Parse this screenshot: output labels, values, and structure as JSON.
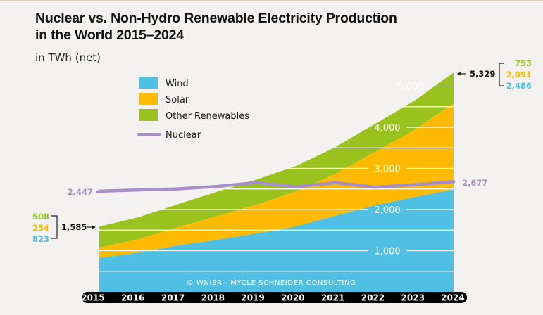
{
  "title_line1": "Nuclear vs. Non-Hydro Renewable Electricity Production",
  "title_line2": "in the World 2015–2024",
  "subtitle": "in TWh (net)",
  "credit": "© WNISR - MYCLE SCHNEIDER CONSULTING",
  "colors": {
    "wind": "#4fc0e4",
    "solar": "#fdba00",
    "other": "#99c21f",
    "nuclear": "#a68fc9",
    "background": "#f4f2f0",
    "year_bar": "#000000",
    "five_thousand_label": "#d8bc93"
  },
  "chart_data": {
    "type": "area",
    "stacked": true,
    "title": "Nuclear vs. Non-Hydro Renewable Electricity Production in the World 2015–2024",
    "ylabel": "in TWh (net)",
    "xlabel": "",
    "x": [
      "2015",
      "2016",
      "2017",
      "2018",
      "2019",
      "2020",
      "2021",
      "2022",
      "2023",
      "2024"
    ],
    "ylim": [
      0,
      5400
    ],
    "gridlines": [
      500,
      1000,
      1500,
      2000,
      2500,
      3000,
      3500,
      4000,
      4500,
      5000
    ],
    "gridline_labels": [
      {
        "value": 1000,
        "label": "1,000"
      },
      {
        "value": 2000,
        "label": "2,000"
      },
      {
        "value": 3000,
        "label": "3,000"
      },
      {
        "value": 4000,
        "label": "4,000"
      },
      {
        "value": 5000,
        "label": "5,000"
      }
    ],
    "series": [
      {
        "name": "Wind",
        "key": "wind",
        "values": [
          823,
          955,
          1130,
          1265,
          1420,
          1590,
          1850,
          2100,
          2300,
          2486
        ]
      },
      {
        "name": "Solar",
        "key": "solar",
        "values": [
          254,
          330,
          440,
          580,
          700,
          850,
          1020,
          1300,
          1630,
          2091
        ]
      },
      {
        "name": "Other Renewables",
        "key": "other",
        "values": [
          508,
          530,
          560,
          590,
          610,
          620,
          650,
          680,
          710,
          753
        ]
      }
    ],
    "line_series": {
      "name": "Nuclear",
      "key": "nuclear",
      "values": [
        2447,
        2476,
        2503,
        2563,
        2657,
        2553,
        2653,
        2545,
        2602,
        2677
      ]
    },
    "legend": [
      "Wind",
      "Solar",
      "Other Renewables",
      "Nuclear"
    ],
    "legend_position": "top-left",
    "annotations": {
      "start": {
        "total": "1,585",
        "other": "508",
        "solar": "254",
        "wind": "823",
        "nuclear": "2,447"
      },
      "end": {
        "total": "5,329",
        "other": "753",
        "solar": "2,091",
        "wind": "2,486",
        "nuclear": "2,677"
      }
    }
  }
}
